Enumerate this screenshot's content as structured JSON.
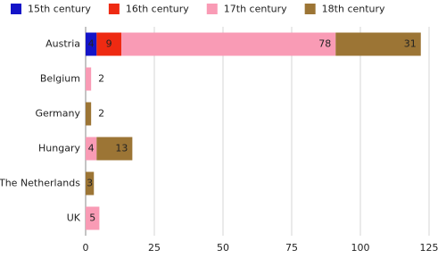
{
  "chart_data": {
    "type": "stacked-bar-horizontal",
    "categories": [
      "Austria",
      "Belgium",
      "Germany",
      "Hungary",
      "The Netherlands",
      "UK"
    ],
    "series": [
      {
        "name": "15th century",
        "color": "#1414c8",
        "values": [
          4,
          null,
          null,
          null,
          null,
          null
        ]
      },
      {
        "name": "16th century",
        "color": "#ee2a12",
        "values": [
          9,
          null,
          null,
          null,
          null,
          null
        ]
      },
      {
        "name": "17th century",
        "color": "#f99bb5",
        "values": [
          78,
          2,
          null,
          4,
          null,
          5
        ]
      },
      {
        "name": "18th century",
        "color": "#9c7535",
        "values": [
          31,
          null,
          2,
          13,
          3,
          null
        ]
      }
    ],
    "xlim": [
      0,
      125
    ],
    "xticks": [
      0,
      25,
      50,
      75,
      100,
      125
    ],
    "grid": true
  }
}
